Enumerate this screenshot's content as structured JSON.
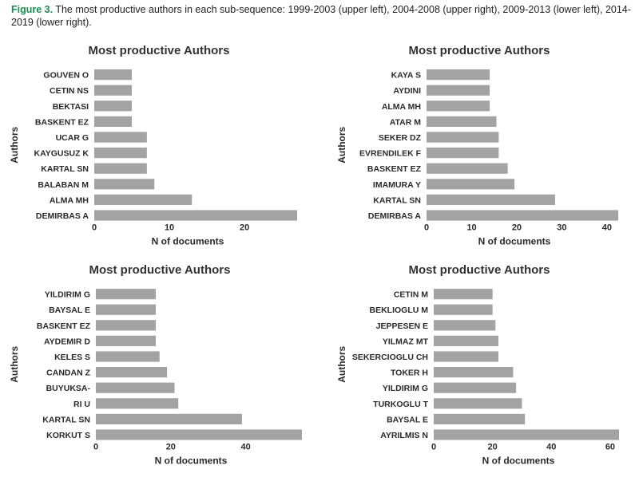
{
  "caption": {
    "label": "Figure 3.",
    "text": " The most productive authors in each sub-sequence: 1999-2003 (upper left), 2004-2008 (upper right), 2009-2013 (lower left), 2014-2019 (lower right)."
  },
  "colors": {
    "bar": "#a3a3a3",
    "caption_label": "#1c8c53"
  },
  "chart_data": [
    {
      "type": "bar",
      "orientation": "horizontal",
      "period": "1999-2003",
      "title": "Most productive Authors",
      "xlabel": "N of documents",
      "ylabel": "Authors",
      "categories": [
        "GOUVEN O",
        "CETIN NS",
        "BEKTASI",
        "BASKENT EZ",
        "UCAR G",
        "KAYGUSUZ K",
        "KARTAL SN",
        "BALABAN M",
        "ALMA MH",
        "DEMIRBAS A"
      ],
      "values": [
        5,
        5,
        5,
        5,
        7,
        7,
        7,
        8,
        13,
        27
      ],
      "xticks": [
        0,
        10,
        20
      ],
      "xlim": [
        0,
        27
      ]
    },
    {
      "type": "bar",
      "orientation": "horizontal",
      "period": "2004-2008",
      "title": "Most productive Authors",
      "xlabel": "N of documents",
      "ylabel": "Authors",
      "categories": [
        "KAYA S",
        "AYDINI",
        "ALMA MH",
        "ATAR M",
        "SEKER DZ",
        "EVRENDILEK F",
        "BASKENT EZ",
        "IMAMURA Y",
        "KARTAL SN",
        "DEMIRBAS A"
      ],
      "values": [
        14,
        14,
        14,
        15.5,
        16,
        16,
        18,
        19.5,
        28.5,
        42.5
      ],
      "xticks": [
        0,
        10,
        20,
        30,
        40
      ],
      "xlim": [
        0,
        42.5
      ]
    },
    {
      "type": "bar",
      "orientation": "horizontal",
      "period": "2009-2013",
      "title": "Most productive Authors",
      "xlabel": "N of documents",
      "ylabel": "Authors",
      "categories": [
        "YILDIRIM G",
        "BAYSAL E",
        "BASKENT EZ",
        "AYDEMIR D",
        "KELES S",
        "CANDAN Z",
        "BUYUKSA-",
        "RI U",
        "KARTAL SN",
        "KORKUT S"
      ],
      "values": [
        16,
        16,
        16,
        16,
        17,
        19,
        21,
        22,
        39,
        55
      ],
      "xticks": [
        0,
        20,
        40
      ],
      "xlim": [
        0,
        55
      ]
    },
    {
      "type": "bar",
      "orientation": "horizontal",
      "period": "2014-2019",
      "title": "Most productive Authors",
      "xlabel": "N of documents",
      "ylabel": "Authors",
      "categories": [
        "CETIN M",
        "BEKLIOGLU M",
        "JEPPESEN E",
        "YILMAZ MT",
        "SEKERCIOGLU CH",
        "TOKER H",
        "YILDIRIM G",
        "TURKOGLU T",
        "BAYSAL E",
        "AYRILMIS N"
      ],
      "values": [
        20,
        20,
        21,
        22,
        22,
        27,
        28,
        30,
        31,
        63
      ],
      "xticks": [
        0,
        20,
        40,
        60
      ],
      "xlim": [
        0,
        63
      ]
    }
  ]
}
